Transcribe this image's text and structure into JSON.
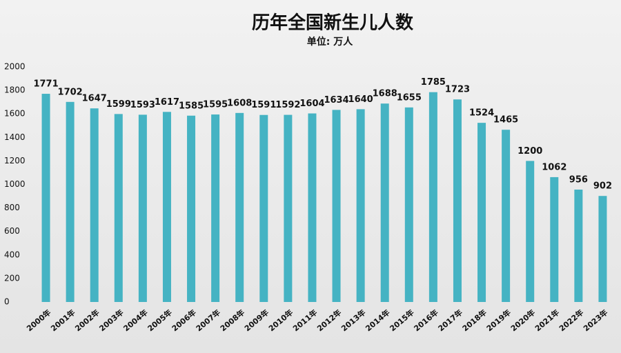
{
  "chart_data": {
    "type": "bar",
    "title": "历年全国新生儿人数",
    "subtitle": "单位: 万人",
    "categories": [
      "2000年",
      "2001年",
      "2002年",
      "2003年",
      "2004年",
      "2005年",
      "2006年",
      "2007年",
      "2008年",
      "2009年",
      "2010年",
      "2011年",
      "2012年",
      "2013年",
      "2014年",
      "2015年",
      "2016年",
      "2017年",
      "2018年",
      "2019年",
      "2020年",
      "2021年",
      "2022年",
      "2023年"
    ],
    "values": [
      1771,
      1702,
      1647,
      1599,
      1593,
      1617,
      1585,
      1595,
      1608,
      1591,
      1592,
      1604,
      1634,
      1640,
      1688,
      1655,
      1785,
      1723,
      1524,
      1465,
      1200,
      1062,
      956,
      902
    ],
    "color": "#45b3c3",
    "ylim": [
      0,
      2000
    ],
    "yticks": [
      0,
      200,
      400,
      600,
      800,
      1000,
      1200,
      1400,
      1600,
      1800,
      2000
    ],
    "grid": false
  }
}
